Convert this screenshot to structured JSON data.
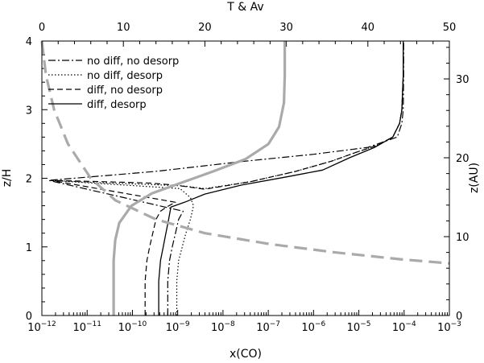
{
  "chart_data": {
    "type": "line",
    "top_axis_label": "T & Av",
    "bottom_axis_label": "x(CO)",
    "left_axis_label": "z/H",
    "right_axis_label": "z(AU)",
    "x_bottom": {
      "scale": "log",
      "range": [
        -12,
        -3
      ],
      "tick_exponents": [
        -12,
        -11,
        -10,
        -9,
        -8,
        -7,
        -6,
        -5,
        -4,
        -3
      ],
      "tick_base": "10"
    },
    "x_top": {
      "scale": "linear",
      "range": [
        0,
        50
      ],
      "ticks": [
        "0",
        "10",
        "20",
        "30",
        "40",
        "50"
      ]
    },
    "y_left": {
      "range": [
        0,
        4
      ],
      "ticks": [
        "0",
        "1",
        "2",
        "3",
        "4"
      ]
    },
    "y_right": {
      "range_au": [
        0,
        34.8
      ],
      "ticks": [
        "0",
        "10",
        "20",
        "30"
      ]
    },
    "legend": [
      {
        "label": "no diff, no desorp",
        "style": "dashdot"
      },
      {
        "label": "no diff, desorp",
        "style": "dotted"
      },
      {
        "label": "diff, no desorp",
        "style": "dashed"
      },
      {
        "label": "diff, desorp",
        "style": "solid"
      }
    ],
    "series": [
      {
        "name": "no diff, no desorp",
        "axis": "log-x",
        "style": "dashdot",
        "color": "#000000",
        "points": [
          [
            -9.22,
            0
          ],
          [
            -9.22,
            0.5
          ],
          [
            -9.18,
            0.8
          ],
          [
            -9.12,
            1.0
          ],
          [
            -9.05,
            1.2
          ],
          [
            -8.98,
            1.4
          ],
          [
            -8.88,
            1.52
          ],
          [
            -11.85,
            1.97
          ],
          [
            -11.3,
            2.0
          ],
          [
            -9.5,
            2.1
          ],
          [
            -7.5,
            2.25
          ],
          [
            -6,
            2.35
          ],
          [
            -4.8,
            2.45
          ],
          [
            -4.15,
            2.6
          ],
          [
            -4.05,
            2.8
          ],
          [
            -4.02,
            3.0
          ],
          [
            -4.01,
            3.5
          ],
          [
            -4.01,
            4.0
          ]
        ]
      },
      {
        "name": "no diff, desorp",
        "axis": "log-x",
        "style": "dotted",
        "color": "#000000",
        "points": [
          [
            -9.02,
            0
          ],
          [
            -9.02,
            0.5
          ],
          [
            -8.98,
            0.8
          ],
          [
            -8.9,
            1.0
          ],
          [
            -8.82,
            1.2
          ],
          [
            -8.72,
            1.4
          ],
          [
            -8.65,
            1.6
          ],
          [
            -8.72,
            1.72
          ],
          [
            -8.95,
            1.85
          ],
          [
            -11.8,
            1.97
          ],
          [
            -10.5,
            1.93
          ],
          [
            -9.6,
            1.91
          ],
          [
            -8.9,
            1.89
          ],
          [
            -8.4,
            1.85
          ],
          [
            -7.4,
            1.95
          ],
          [
            -6.4,
            2.1
          ],
          [
            -5.6,
            2.25
          ],
          [
            -5.05,
            2.38
          ],
          [
            -4.6,
            2.48
          ],
          [
            -4.25,
            2.6
          ],
          [
            -4.1,
            2.8
          ],
          [
            -4.05,
            3.0
          ],
          [
            -4.02,
            3.5
          ],
          [
            -4.02,
            4.0
          ]
        ]
      },
      {
        "name": "diff, no desorp",
        "axis": "log-x",
        "style": "dashed",
        "color": "#000000",
        "points": [
          [
            -9.72,
            0
          ],
          [
            -9.72,
            0.5
          ],
          [
            -9.68,
            0.8
          ],
          [
            -9.62,
            1.0
          ],
          [
            -9.55,
            1.2
          ],
          [
            -9.48,
            1.4
          ],
          [
            -9.38,
            1.52
          ],
          [
            -9.25,
            1.58
          ],
          [
            -9.05,
            1.65
          ],
          [
            -11.8,
            1.97
          ],
          [
            -10.6,
            1.95
          ],
          [
            -9.6,
            1.93
          ],
          [
            -9.05,
            1.9
          ],
          [
            -8.4,
            1.84
          ],
          [
            -7.4,
            1.95
          ],
          [
            -6.4,
            2.1
          ],
          [
            -5.6,
            2.25
          ],
          [
            -5.05,
            2.38
          ],
          [
            -4.6,
            2.48
          ],
          [
            -4.25,
            2.6
          ],
          [
            -4.1,
            2.8
          ],
          [
            -4.05,
            3.0
          ],
          [
            -4.02,
            3.5
          ],
          [
            -4.02,
            4.0
          ]
        ]
      },
      {
        "name": "diff, desorp",
        "axis": "log-x",
        "style": "solid",
        "color": "#000000",
        "points": [
          [
            -9.42,
            0
          ],
          [
            -9.42,
            0.5
          ],
          [
            -9.38,
            0.8
          ],
          [
            -9.32,
            1.0
          ],
          [
            -9.26,
            1.2
          ],
          [
            -9.2,
            1.4
          ],
          [
            -9.15,
            1.58
          ],
          [
            -8.85,
            1.65
          ],
          [
            -8.4,
            1.77
          ],
          [
            -7.6,
            1.9
          ],
          [
            -6.6,
            2.02
          ],
          [
            -5.8,
            2.12
          ],
          [
            -5.2,
            2.3
          ],
          [
            -4.65,
            2.45
          ],
          [
            -4.25,
            2.6
          ],
          [
            -4.1,
            2.8
          ],
          [
            -4.05,
            3.0
          ],
          [
            -4.02,
            3.5
          ],
          [
            -4.02,
            4.0
          ]
        ]
      },
      {
        "name": "T",
        "axis": "linear-top",
        "style": "solid-thick",
        "color": "#aaaaaa",
        "points": [
          [
            8.8,
            0
          ],
          [
            8.8,
            0.8
          ],
          [
            9.0,
            1.1
          ],
          [
            9.5,
            1.35
          ],
          [
            11.0,
            1.6
          ],
          [
            13.5,
            1.78
          ],
          [
            17.0,
            1.93
          ],
          [
            21.0,
            2.1
          ],
          [
            25.0,
            2.28
          ],
          [
            27.8,
            2.5
          ],
          [
            29.1,
            2.75
          ],
          [
            29.7,
            3.1
          ],
          [
            29.8,
            3.5
          ],
          [
            29.8,
            4.0
          ]
        ]
      },
      {
        "name": "Av",
        "axis": "linear-top",
        "style": "dashed-thick",
        "color": "#aaaaaa",
        "points": [
          [
            0,
            4.0
          ],
          [
            0.5,
            3.5
          ],
          [
            1.5,
            3.0
          ],
          [
            3.2,
            2.5
          ],
          [
            6.0,
            2.0
          ],
          [
            9.0,
            1.68
          ],
          [
            14.0,
            1.4
          ],
          [
            20.0,
            1.2
          ],
          [
            28.0,
            1.04
          ],
          [
            36.0,
            0.92
          ],
          [
            44.0,
            0.82
          ],
          [
            50.0,
            0.76
          ]
        ]
      }
    ]
  }
}
